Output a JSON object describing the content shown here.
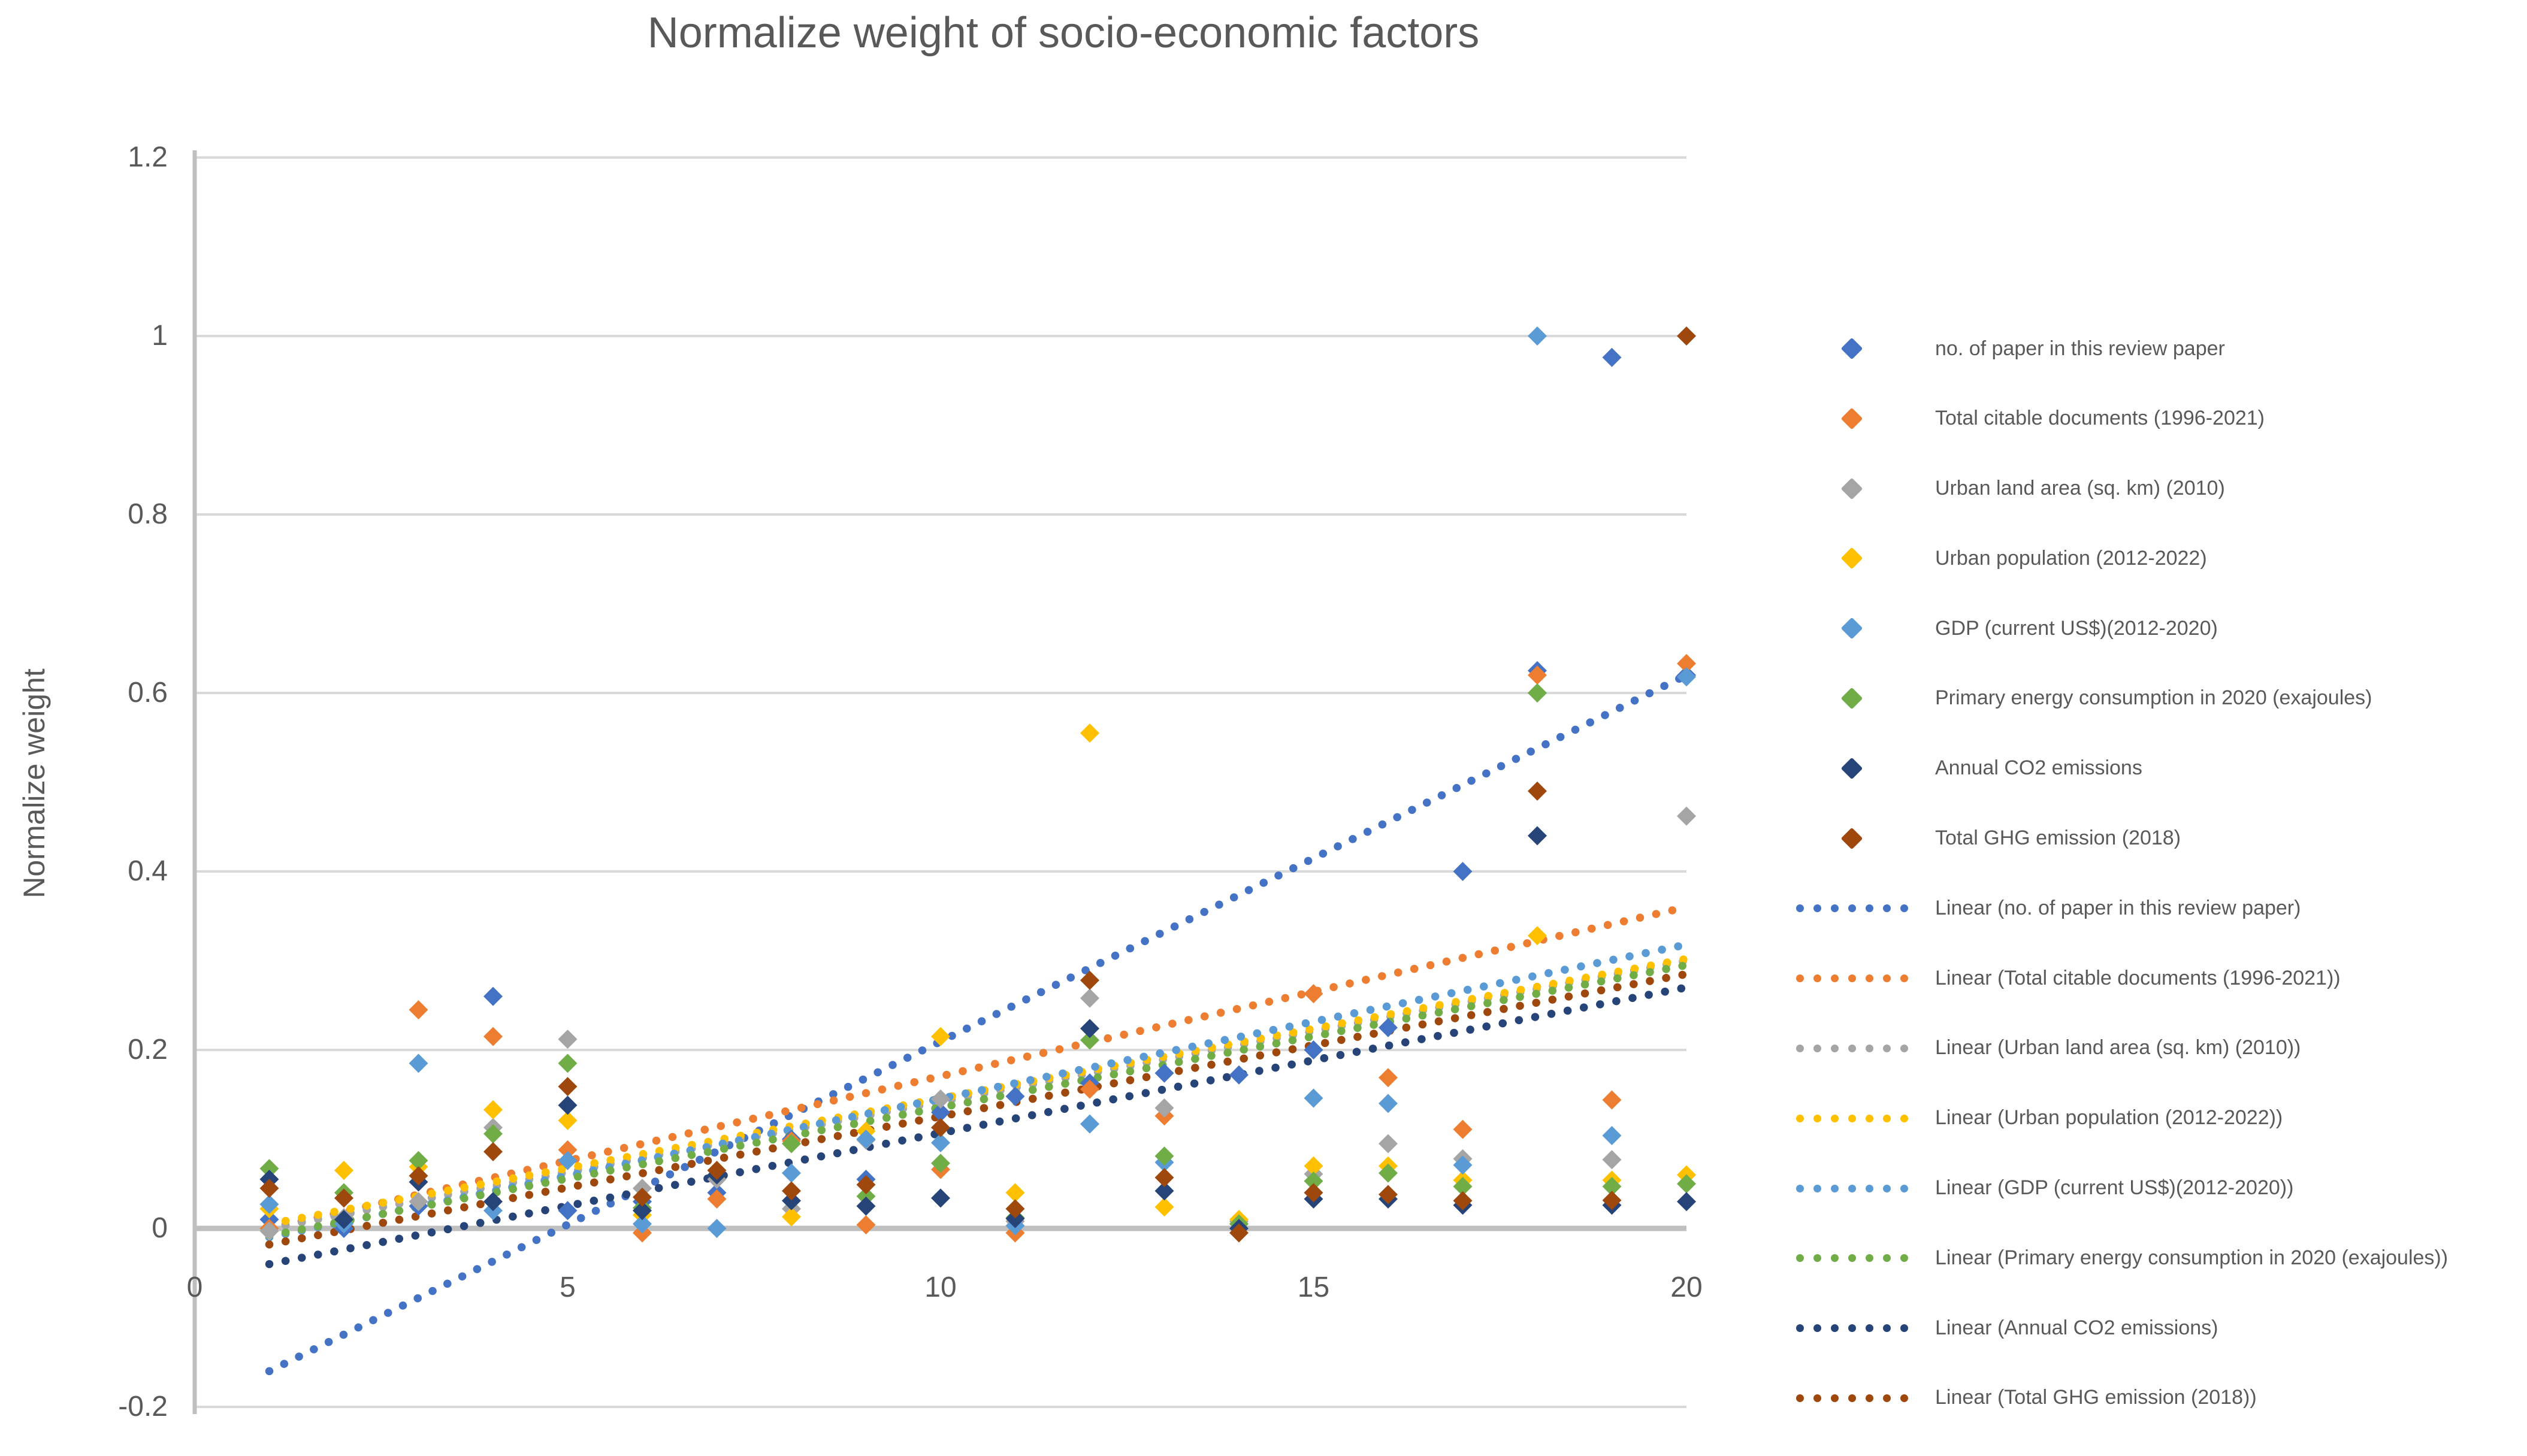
{
  "title": "Normalize weight of socio-economic factors",
  "y_axis_title": "Normalize weight",
  "axes": {
    "y_tick_labels": [
      "1.2",
      "1",
      "0.8",
      "0.6",
      "0.4",
      "0.2",
      "0",
      "-0.2"
    ],
    "x_tick_labels": [
      "0",
      "5",
      "10",
      "15",
      "20"
    ]
  },
  "colors": {
    "text": "#595959",
    "gridline": "#D9D9D9",
    "axis_line": "#BFBFBF"
  },
  "chart_data": {
    "type": "scatter",
    "title": "Normalize weight of socio-economic factors",
    "xlabel": "",
    "ylabel": "Normalize weight",
    "xlim": [
      0,
      20
    ],
    "ylim": [
      -0.2,
      1.2
    ],
    "x_ticks": [
      0,
      5,
      10,
      15,
      20
    ],
    "y_ticks": [
      1.2,
      1.0,
      0.8,
      0.6,
      0.4,
      0.2,
      0,
      -0.2
    ],
    "grid": true,
    "legend_position": "right",
    "x": [
      1,
      2,
      3,
      4,
      5,
      6,
      7,
      8,
      9,
      10,
      11,
      12,
      13,
      14,
      15,
      16,
      17,
      18,
      19,
      20
    ],
    "series": [
      {
        "name": "no. of paper in this review paper",
        "color": "#4472C4",
        "values": [
          0.01,
          0.0,
          0.025,
          0.26,
          0.02,
          0.03,
          0.04,
          0.1,
          0.055,
          0.13,
          0.148,
          0.163,
          0.174,
          0.172,
          0.2,
          0.225,
          0.4,
          0.625,
          0.976,
          0.62
        ]
      },
      {
        "name": "Total citable documents (1996-2021)",
        "color": "#ED7D31",
        "values": [
          0.0,
          0.01,
          0.245,
          0.215,
          0.088,
          -0.005,
          0.033,
          0.098,
          0.004,
          0.066,
          -0.005,
          0.156,
          0.126,
          0.005,
          0.263,
          0.169,
          0.111,
          0.62,
          0.144,
          0.633
        ]
      },
      {
        "name": "Urban land area (sq. km) (2010)",
        "color": "#A5A5A5",
        "values": [
          -0.003,
          0.012,
          0.03,
          0.113,
          0.212,
          0.045,
          0.055,
          0.022,
          0.099,
          0.145,
          0.008,
          0.258,
          0.135,
          0.008,
          0.061,
          0.095,
          0.078,
          0.6,
          0.077,
          0.462
        ]
      },
      {
        "name": "Urban population (2012-2022)",
        "color": "#FFC000",
        "values": [
          0.022,
          0.065,
          0.069,
          0.133,
          0.121,
          0.015,
          0.065,
          0.013,
          0.109,
          0.215,
          0.04,
          0.555,
          0.024,
          0.01,
          0.07,
          0.07,
          0.054,
          0.328,
          0.054,
          0.06
        ]
      },
      {
        "name": "GDP (current US$)(2012-2020)",
        "color": "#5B9BD5",
        "values": [
          0.027,
          0.005,
          0.185,
          0.02,
          0.076,
          0.005,
          0.0,
          0.062,
          0.1,
          0.096,
          0.003,
          0.117,
          0.074,
          0.005,
          0.146,
          0.14,
          0.071,
          1.0,
          0.104,
          0.618
        ]
      },
      {
        "name": "Primary energy consumption in 2020 (exajoules)",
        "color": "#70AD47",
        "values": [
          0.067,
          0.04,
          0.076,
          0.106,
          0.185,
          0.023,
          0.06,
          0.095,
          0.036,
          0.073,
          0.012,
          0.211,
          0.081,
          0.005,
          0.053,
          0.062,
          0.047,
          0.6,
          0.047,
          0.05
        ]
      },
      {
        "name": "Annual CO2 emissions",
        "color": "#264478",
        "values": [
          0.055,
          0.01,
          0.052,
          0.03,
          0.138,
          0.02,
          0.06,
          0.031,
          0.025,
          0.034,
          0.011,
          0.224,
          0.042,
          0.0,
          0.033,
          0.033,
          0.026,
          0.44,
          0.026,
          0.03
        ]
      },
      {
        "name": "Total GHG emission (2018)",
        "color": "#9E480E",
        "values": [
          0.045,
          0.034,
          0.059,
          0.086,
          0.159,
          0.035,
          0.065,
          0.042,
          0.049,
          0.113,
          0.022,
          0.278,
          0.057,
          -0.005,
          0.04,
          0.038,
          0.031,
          0.49,
          0.0315,
          1.0
        ]
      }
    ],
    "trendlines": [
      {
        "name": "Linear (no. of paper in this review paper)",
        "color": "#4472C4",
        "x_start": 1,
        "y_start": -0.16,
        "x_end": 20,
        "y_end": 0.62
      },
      {
        "name": "Linear (Total citable documents (1996-2021))",
        "color": "#ED7D31",
        "x_start": 1,
        "y_start": 0.0,
        "x_end": 20,
        "y_end": 0.36
      },
      {
        "name": "Linear (Urban land area (sq. km) (2010))",
        "color": "#A5A5A5",
        "x_start": 1,
        "y_start": 0.0,
        "x_end": 20,
        "y_end": 0.3
      },
      {
        "name": "Linear (Urban population (2012-2022))",
        "color": "#FFC000",
        "x_start": 1,
        "y_start": 0.005,
        "x_end": 20,
        "y_end": 0.302
      },
      {
        "name": "Linear (GDP (current US$)(2012-2020))",
        "color": "#5B9BD5",
        "x_start": 1,
        "y_start": -0.01,
        "x_end": 20,
        "y_end": 0.318
      },
      {
        "name": "Linear (Primary energy consumption in 2020 (exajoules))",
        "color": "#70AD47",
        "x_start": 1,
        "y_start": -0.008,
        "x_end": 20,
        "y_end": 0.295
      },
      {
        "name": "Linear (Annual CO2 emissions)",
        "color": "#264478",
        "x_start": 1,
        "y_start": -0.04,
        "x_end": 20,
        "y_end": 0.27
      },
      {
        "name": "Linear (Total GHG emission (2018))",
        "color": "#9E480E",
        "x_start": 1,
        "y_start": -0.018,
        "x_end": 20,
        "y_end": 0.285
      }
    ]
  }
}
